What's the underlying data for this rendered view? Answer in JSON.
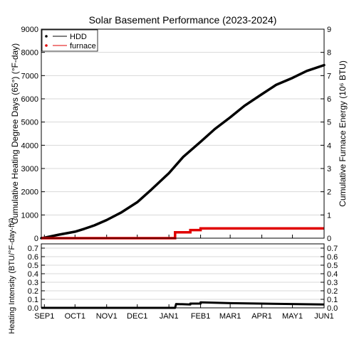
{
  "chart_data": [
    {
      "type": "line",
      "title": "Solar Basement Performance (2023-2024)",
      "ylabel": "Cumulative Heating Degree Days (65°) (°F-day)",
      "ylabel2": "Cumulative Furnace Energy (10⁶ BTU)",
      "ylim": [
        0,
        9000
      ],
      "y2lim": [
        0,
        9
      ],
      "yticks": [
        "0",
        "1000",
        "2000",
        "3000",
        "4000",
        "5000",
        "6000",
        "7000",
        "8000",
        "9000"
      ],
      "y2ticks": [
        "0",
        "1",
        "2",
        "3",
        "4",
        "5",
        "6",
        "7",
        "8",
        "9"
      ],
      "grid": true,
      "legend": {
        "position": "top-left",
        "entries": [
          "HDD",
          "furnace"
        ]
      },
      "x_dates": [
        "2023-08-29",
        "2023-09-01",
        "2023-09-15",
        "2023-10-01",
        "2023-10-10",
        "2023-10-20",
        "2023-11-01",
        "2023-11-15",
        "2023-12-01",
        "2023-12-15",
        "2024-01-01",
        "2024-01-15",
        "2024-02-01",
        "2024-02-15",
        "2024-03-01",
        "2024-03-15",
        "2024-04-01",
        "2024-04-15",
        "2024-05-01",
        "2024-05-15",
        "2024-06-01"
      ],
      "series": [
        {
          "name": "HDD",
          "color": "#000000",
          "values": [
            0,
            20,
            150,
            280,
            400,
            550,
            780,
            1100,
            1550,
            2100,
            2800,
            3500,
            4150,
            4700,
            5200,
            5700,
            6200,
            6600,
            6900,
            7200,
            7450
          ]
        },
        {
          "name": "furnace",
          "color": "#e00000",
          "x_dates": [
            "2023-08-29",
            "2024-01-07",
            "2024-01-07",
            "2024-01-22",
            "2024-01-22",
            "2024-02-01",
            "2024-02-01",
            "2024-06-01"
          ],
          "values": [
            0,
            0,
            0.25,
            0.25,
            0.35,
            0.35,
            0.42,
            0.42
          ]
        }
      ]
    },
    {
      "type": "line",
      "ylabel": "Heating Intensity (BTU/°F-day-ft²)",
      "ylim": [
        0,
        0.75
      ],
      "yticks": [
        "0.0",
        "0.1",
        "0.2",
        "0.3",
        "0.4",
        "0.5",
        "0.6",
        "0.7"
      ],
      "y2ticks": [
        "0.0",
        "0.1",
        "0.2",
        "0.3",
        "0.4",
        "0.5",
        "0.6",
        "0.7"
      ],
      "grid": true,
      "xticks": [
        "SEP1",
        "OCT1",
        "NOV1",
        "DEC1",
        "JAN1",
        "FEB1",
        "MAR1",
        "APR1",
        "MAY1",
        "JUN1"
      ],
      "xtick_dates": [
        "2023-09-01",
        "2023-10-01",
        "2023-11-01",
        "2023-12-01",
        "2024-01-01",
        "2024-02-01",
        "2024-03-01",
        "2024-04-01",
        "2024-05-01",
        "2024-06-01"
      ],
      "series": [
        {
          "name": "intensity",
          "color": "#000000",
          "x_dates": [
            "2023-08-29",
            "2024-01-07",
            "2024-01-08",
            "2024-01-22",
            "2024-01-22",
            "2024-02-01",
            "2024-02-01",
            "2024-03-01",
            "2024-06-01"
          ],
          "values": [
            0,
            0,
            0.045,
            0.04,
            0.05,
            0.05,
            0.065,
            0.055,
            0.04
          ]
        }
      ]
    }
  ]
}
